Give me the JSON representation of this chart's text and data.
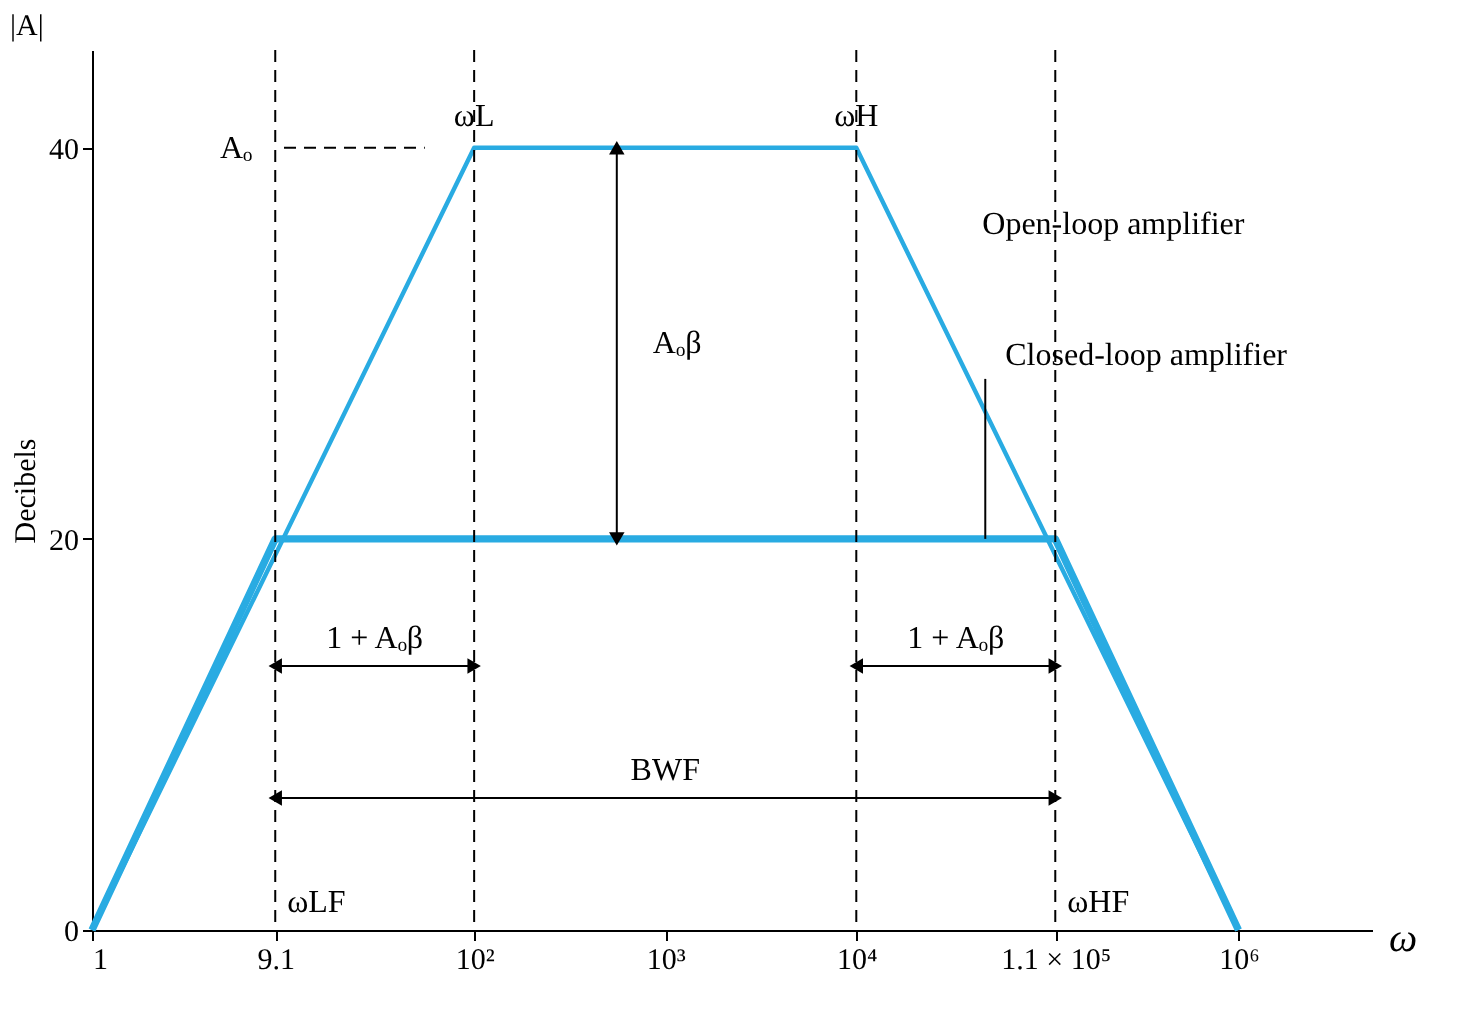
{
  "chart_data": {
    "type": "line",
    "ylabel": "Decibels",
    "xlabel": "ω",
    "log": "x",
    "xlim": [
      1,
      5000000
    ],
    "ylim": [
      0,
      45
    ],
    "xticks": [
      1,
      9.1,
      {
        "value": 100,
        "label": "10²"
      },
      {
        "value": 1000,
        "label": "10³"
      },
      {
        "value": 10000,
        "label": "10⁴"
      },
      {
        "value": 110000,
        "label": "1.1 × 10⁵"
      },
      {
        "value": 1000000,
        "label": "10⁶"
      }
    ],
    "yticks": [
      0,
      20,
      40
    ],
    "grid": false,
    "marker": "none",
    "line_style": "solid",
    "series": [
      {
        "name": "Open-loop amplifier",
        "color": "#29abe2",
        "x": [
          1,
          100,
          10000,
          1000000
        ],
        "values": [
          0,
          40,
          40,
          0
        ]
      },
      {
        "name": "Closed-loop amplifier",
        "color": "#29abe2",
        "x": [
          1,
          9.1,
          110000,
          1000000
        ],
        "values": [
          0,
          20,
          20,
          0
        ]
      }
    ],
    "ref_lines": [
      {
        "axis": "x",
        "value": 9.1,
        "line_style": "dashed",
        "color": "#000000"
      },
      {
        "axis": "x",
        "value": 100,
        "line_style": "dashed",
        "color": "#000000"
      },
      {
        "axis": "x",
        "value": 10000,
        "line_style": "dashed",
        "color": "#000000"
      },
      {
        "axis": "x",
        "value": 110000,
        "line_style": "dashed",
        "color": "#000000"
      }
    ],
    "annotations": [
      "|A|",
      "Aₒ",
      "Aₒβ",
      "1 + Aₒβ",
      "1 + Aₒβ",
      "BWF",
      {
        "text": "ωL",
        "x": 100,
        "y": 40
      },
      {
        "text": "ωH",
        "x": 10000,
        "y": 40
      },
      {
        "text": "ωLF",
        "x": 9.1,
        "y": 0
      },
      {
        "text": "ωHF",
        "x": 110000,
        "y": 0
      }
    ]
  }
}
